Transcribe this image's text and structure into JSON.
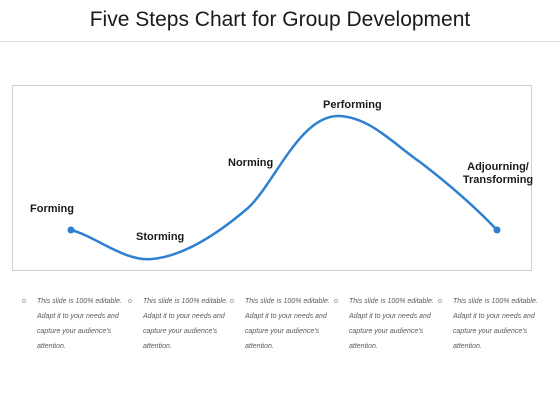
{
  "title": "Five Steps Chart for Group Development",
  "colors": {
    "curve": "#2f80d1",
    "marker": "#2f80d1",
    "border": "#cfcfcf"
  },
  "stages": [
    {
      "label": "Forming"
    },
    {
      "label": "Storming"
    },
    {
      "label": "Norming"
    },
    {
      "label": "Performing"
    },
    {
      "label": "Adjourning/ Transforming"
    }
  ],
  "notes": [
    {
      "bullet": "o",
      "text": "This slide is 100% editable. Adapt it to your needs and capture your audience's attention."
    },
    {
      "bullet": "o",
      "text": "This slide is 100% editable. Adapt it to your needs and capture your audience's attention."
    },
    {
      "bullet": "o",
      "text": "This slide is 100% editable. Adapt it to your needs and capture your audience's attention."
    },
    {
      "bullet": "o",
      "text": "This slide is 100% editable. Adapt it to your needs and capture your audience's attention."
    },
    {
      "bullet": "o",
      "text": "This slide is 100% editable. Adapt it to your needs and capture your audience's attention."
    }
  ]
}
